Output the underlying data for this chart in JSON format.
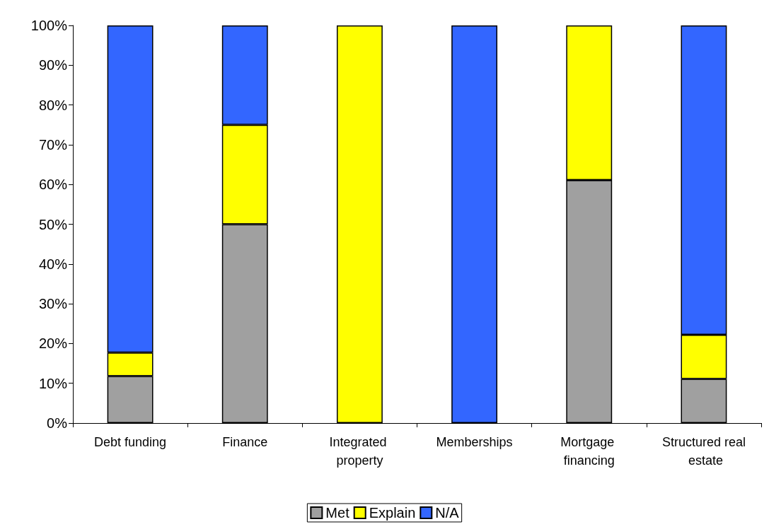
{
  "chart_data": {
    "type": "bar",
    "stacked": true,
    "categories": [
      "Debt funding",
      "Finance",
      "Integrated property",
      "Memberships",
      "Mortgage financing",
      "Structured real estate"
    ],
    "series": [
      {
        "name": "Met",
        "color": "#a0a0a0",
        "values": [
          11.8,
          50,
          0,
          0,
          61.1,
          11.1
        ]
      },
      {
        "name": "Explain",
        "color": "#ffff00",
        "values": [
          5.9,
          25,
          100,
          0,
          38.9,
          11.1
        ]
      },
      {
        "name": "N/A",
        "color": "#3366ff",
        "values": [
          82.3,
          25,
          0,
          100,
          0,
          77.8
        ]
      }
    ],
    "ylim": [
      0,
      100
    ],
    "yticks": [
      {
        "value": 0,
        "label": "0%"
      },
      {
        "value": 10,
        "label": "10%"
      },
      {
        "value": 20,
        "label": "20%"
      },
      {
        "value": 30,
        "label": "30%"
      },
      {
        "value": 40,
        "label": "40%"
      },
      {
        "value": 50,
        "label": "50%"
      },
      {
        "value": 60,
        "label": "60%"
      },
      {
        "value": 70,
        "label": "70%"
      },
      {
        "value": 80,
        "label": "80%"
      },
      {
        "value": 90,
        "label": "90%"
      },
      {
        "value": 100,
        "label": "100%"
      }
    ],
    "grid": false,
    "legend": "bottom"
  }
}
